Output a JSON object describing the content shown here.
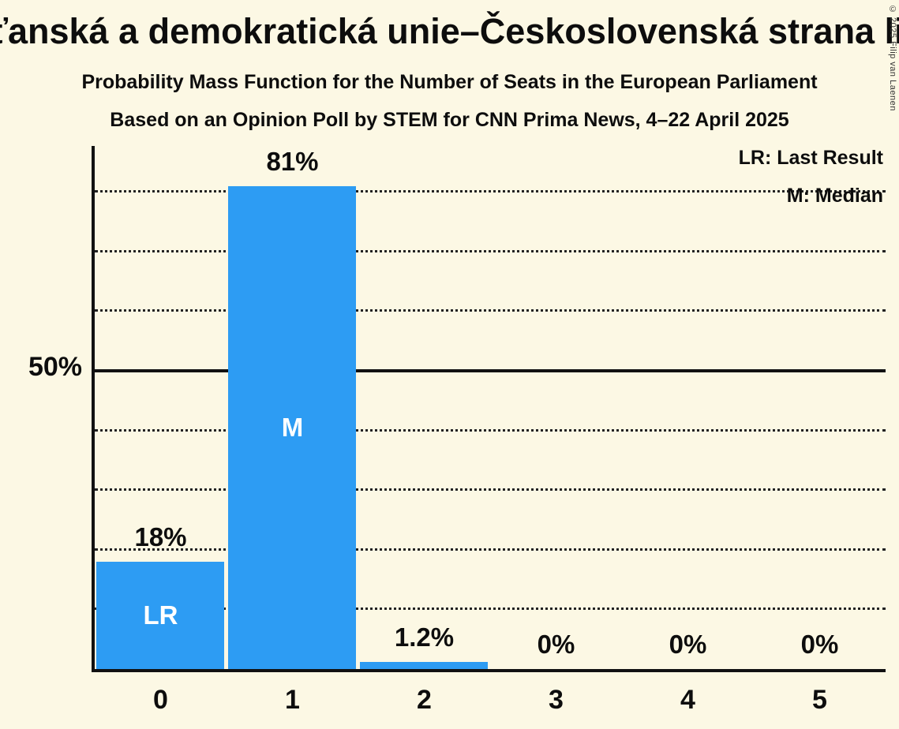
{
  "chart_data": {
    "type": "bar",
    "title": "Křesťanská a demokratická unie–Československá strana lidová",
    "subtitle": "Probability Mass Function for the Number of Seats in the European Parliament",
    "source_line": "Based on an Opinion Poll by STEM for CNN Prima News, 4–22 April 2025",
    "categories": [
      "0",
      "1",
      "2",
      "3",
      "4",
      "5"
    ],
    "values": [
      18,
      81,
      1.2,
      0,
      0,
      0
    ],
    "value_labels": [
      "18%",
      "81%",
      "1.2%",
      "0%",
      "0%",
      "0%"
    ],
    "bar_annotations": [
      "LR",
      "M",
      "",
      "",
      "",
      ""
    ],
    "xlabel": "",
    "ylabel": "",
    "y_axis": {
      "tick_pct": 50,
      "tick_label": "50%",
      "gridlines_pct": [
        10,
        20,
        30,
        40,
        50,
        60,
        70,
        80
      ],
      "solid_pct": 50,
      "ylim": [
        0,
        87.7
      ],
      "grid": "dotted horizontal"
    },
    "legend": [
      "LR: Last Result",
      "M: Median"
    ],
    "legend_position": "top-right",
    "colors": {
      "bar": "#2D9CF3",
      "background": "#FCF8E4",
      "text": "#0D0D0D",
      "bar_label": "#FFFFFF"
    },
    "copyright": "© 2025 Filip van Laenen"
  }
}
